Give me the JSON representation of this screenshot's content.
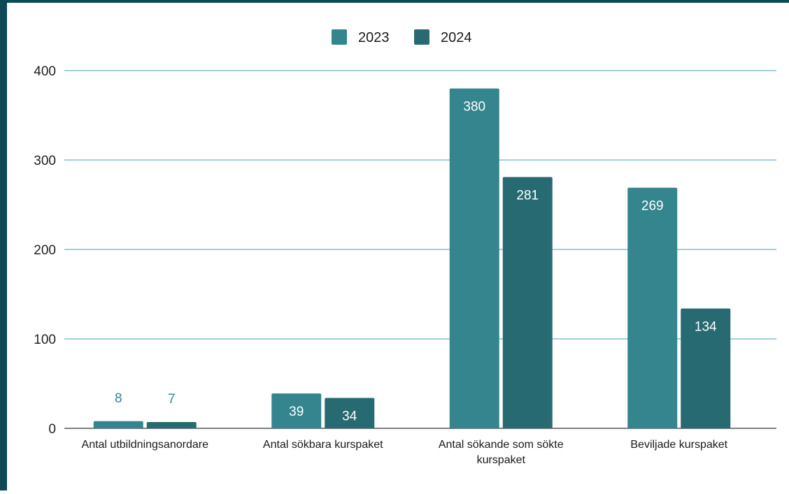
{
  "chart_data": {
    "type": "bar",
    "categories": [
      "Antal utbildningsanordare",
      "Antal sökbara kurspaket",
      "Antal sökande som sökte kurspaket",
      "Beviljade kurspaket"
    ],
    "series": [
      {
        "name": "2023",
        "values": [
          8,
          39,
          380,
          269
        ],
        "color": "#34858e"
      },
      {
        "name": "2024",
        "values": [
          7,
          34,
          281,
          134
        ],
        "color": "#286a72"
      }
    ],
    "ylim": [
      0,
      400
    ],
    "yticks": [
      0,
      100,
      200,
      300,
      400
    ],
    "grid": true,
    "legend_position": "top-center",
    "gridline_color": "#7fc3cf",
    "frame_color": "#0c4a56"
  }
}
